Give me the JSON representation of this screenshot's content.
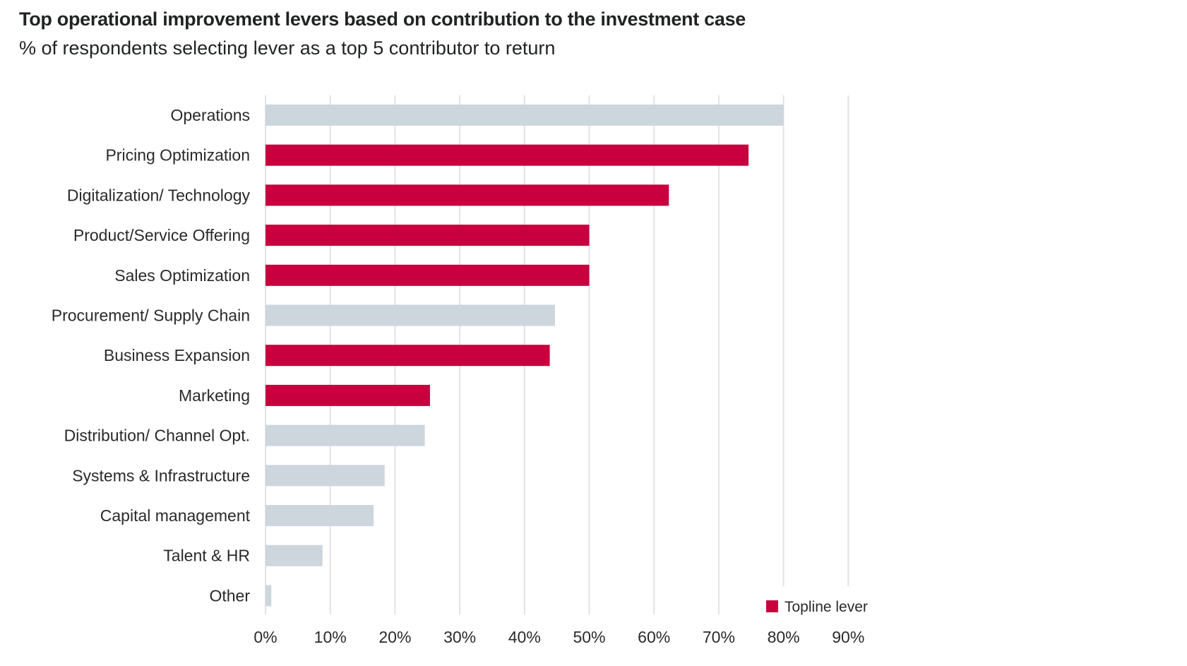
{
  "chart_data": {
    "type": "bar",
    "orientation": "horizontal",
    "title": "Top operational improvement levers based on contribution to the investment case",
    "subtitle": "% of respondents selecting lever as a top 5 contributor to return",
    "xlabel": "",
    "ylabel": "",
    "xlim": [
      0,
      90
    ],
    "x_ticks": [
      0,
      10,
      20,
      30,
      40,
      50,
      60,
      70,
      80,
      90
    ],
    "x_tick_labels": [
      "0%",
      "10%",
      "20%",
      "30%",
      "40%",
      "50%",
      "60%",
      "70%",
      "80%",
      "90%"
    ],
    "grid": "vertical",
    "categories": [
      "Operations",
      "Pricing Optimization",
      "Digitalization/ Technology",
      "Product/Service Offering",
      "Sales Optimization",
      "Procurement/ Supply Chain",
      "Business Expansion",
      "Marketing",
      "Distribution/ Channel Opt.",
      "Systems & Infrastructure",
      "Capital management",
      "Talent & HR",
      "Other"
    ],
    "values": [
      80.0,
      74.6,
      62.3,
      50.0,
      50.0,
      44.7,
      43.9,
      25.4,
      24.6,
      18.4,
      16.7,
      8.8,
      0.9
    ],
    "topline": [
      false,
      true,
      true,
      true,
      true,
      false,
      true,
      true,
      false,
      false,
      false,
      false,
      false
    ],
    "colors": {
      "topline": "#c8003f",
      "other": "#cdd6dd",
      "grid": "#e2e2e2"
    },
    "legend": {
      "entries": [
        {
          "label": "Topline lever",
          "color": "#c8003f"
        }
      ],
      "placement": "bottom-right"
    }
  }
}
